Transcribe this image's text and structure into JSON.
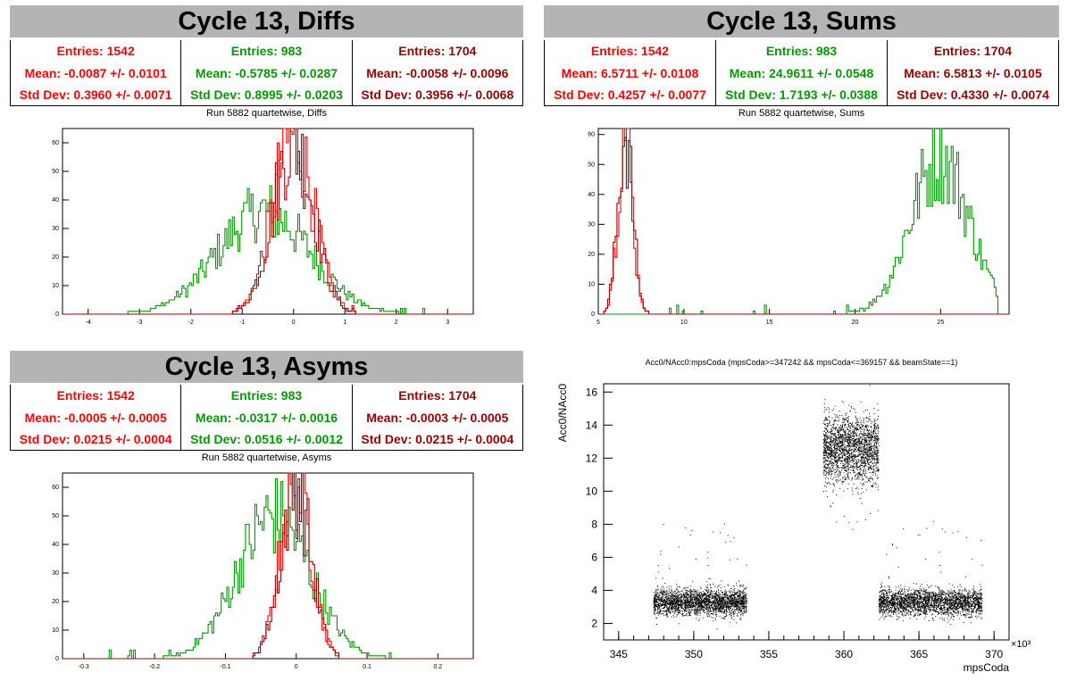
{
  "colors": {
    "set1": "#ff0000",
    "set2": "#009900",
    "set3": "#990000",
    "scatter": "#000000"
  },
  "panels": [
    {
      "title": "Cycle 13, Diffs",
      "subtitle": "Run 5882 quartetwise, Diffs",
      "stats": [
        {
          "entries": "Entries: 1542",
          "mean": "Mean: -0.0087 +/- 0.0101",
          "std": "Std Dev: 0.3960 +/- 0.0071"
        },
        {
          "entries": "Entries: 983",
          "mean": "Mean: -0.5785 +/- 0.0287",
          "std": "Std Dev: 0.8995 +/- 0.0203"
        },
        {
          "entries": "Entries: 1704",
          "mean": "Mean: -0.0058 +/- 0.0096",
          "std": "Std Dev: 0.3956 +/- 0.0068"
        }
      ]
    },
    {
      "title": "Cycle 13, Sums",
      "subtitle": "Run 5882 quartetwise, Sums",
      "stats": [
        {
          "entries": "Entries: 1542",
          "mean": "Mean: 6.5711 +/- 0.0108",
          "std": "Std Dev: 0.4257 +/- 0.0077"
        },
        {
          "entries": "Entries: 983",
          "mean": "Mean: 24.9611 +/- 0.0548",
          "std": "Std Dev: 1.7193 +/- 0.0388"
        },
        {
          "entries": "Entries: 1704",
          "mean": "Mean: 6.5813 +/- 0.0105",
          "std": "Std Dev: 0.4330 +/- 0.0074"
        }
      ]
    },
    {
      "title": "Cycle 13, Asyms",
      "subtitle": "Run 5882 quartetwise, Asyms",
      "stats": [
        {
          "entries": "Entries: 1542",
          "mean": "Mean: -0.0005 +/- 0.0005",
          "std": "Std Dev: 0.0215 +/- 0.0004"
        },
        {
          "entries": "Entries: 983",
          "mean": "Mean: -0.0317 +/- 0.0016",
          "std": "Std Dev: 0.0516 +/- 0.0012"
        },
        {
          "entries": "Entries: 1704",
          "mean": "Mean: -0.0003 +/- 0.0005",
          "std": "Std Dev: 0.0215 +/- 0.0004"
        }
      ]
    }
  ],
  "chart_data": [
    {
      "type": "histogram",
      "title": "Run 5882 quartetwise, Diffs",
      "xlim": [
        -4.5,
        3.5
      ],
      "ylim": [
        0,
        65
      ],
      "xticks": [
        -4,
        -3,
        -2,
        -1,
        0,
        1,
        2,
        3
      ],
      "yticks": [
        0,
        10,
        20,
        30,
        40,
        50,
        60
      ],
      "series": [
        {
          "color_key": "set2",
          "mean": -0.5785,
          "std": 0.8995,
          "peak": 36,
          "range": [
            -4.0,
            3.1
          ]
        },
        {
          "color_key": "set1",
          "mean": -0.0087,
          "std": 0.396,
          "peak": 63,
          "range": [
            -1.2,
            1.2
          ]
        },
        {
          "color_key": "set3",
          "mean": -0.0058,
          "std": 0.3956,
          "peak": 60,
          "range": [
            -1.2,
            1.2
          ]
        }
      ]
    },
    {
      "type": "histogram",
      "title": "Run 5882 quartetwise, Sums",
      "xlim": [
        5,
        29
      ],
      "ylim": [
        0,
        62
      ],
      "xticks": [
        5,
        10,
        15,
        20,
        25
      ],
      "yticks": [
        0,
        10,
        20,
        30,
        40,
        50,
        60
      ],
      "series": [
        {
          "color_key": "set2",
          "mean": 24.9611,
          "std": 1.7193,
          "peak": 52,
          "range": [
            5.5,
            28.3
          ]
        },
        {
          "color_key": "set1",
          "mean": 6.5711,
          "std": 0.4257,
          "peak": 61,
          "range": [
            5.3,
            8.0
          ]
        },
        {
          "color_key": "set3",
          "mean": 6.5813,
          "std": 0.433,
          "peak": 60,
          "range": [
            5.3,
            8.0
          ]
        }
      ]
    },
    {
      "type": "histogram",
      "title": "Run 5882 quartetwise, Asyms",
      "xlim": [
        -0.33,
        0.25
      ],
      "ylim": [
        0,
        65
      ],
      "xticks": [
        -0.3,
        -0.2,
        -0.1,
        0,
        0.1,
        0.2
      ],
      "yticks": [
        0,
        10,
        20,
        30,
        40,
        50,
        60
      ],
      "series": [
        {
          "color_key": "set2",
          "mean": -0.0317,
          "std": 0.0516,
          "peak": 50,
          "range": [
            -0.3,
            0.2
          ]
        },
        {
          "color_key": "set1",
          "mean": -0.0005,
          "std": 0.0215,
          "peak": 63,
          "range": [
            -0.06,
            0.06
          ]
        },
        {
          "color_key": "set3",
          "mean": -0.0003,
          "std": 0.0215,
          "peak": 60,
          "range": [
            -0.06,
            0.06
          ]
        }
      ]
    },
    {
      "type": "scatter",
      "title": "Acc0/NAcc0:mpsCoda (mpsCoda>=347242 && mpsCoda<=369157 && beamState==1)",
      "xlabel": "mpsCoda",
      "ylabel": "Acc0/NAcc0",
      "xlim": [
        344,
        371
      ],
      "ylim": [
        1.0,
        16.5
      ],
      "xticks": [
        345,
        350,
        355,
        360,
        365,
        370
      ],
      "yticks": [
        2,
        4,
        6,
        8,
        10,
        12,
        14,
        16
      ],
      "x_multiplier": "×10³",
      "clusters": [
        {
          "x": [
            347.3,
            353.5
          ],
          "y_mean": 3.3,
          "y_spread": 0.4,
          "n": 2600
        },
        {
          "x": [
            358.6,
            362.3
          ],
          "y_mean": 12.6,
          "y_spread": 1.0,
          "n": 2200
        },
        {
          "x": [
            362.3,
            369.2
          ],
          "y_mean": 3.3,
          "y_spread": 0.4,
          "n": 2800
        }
      ]
    }
  ]
}
